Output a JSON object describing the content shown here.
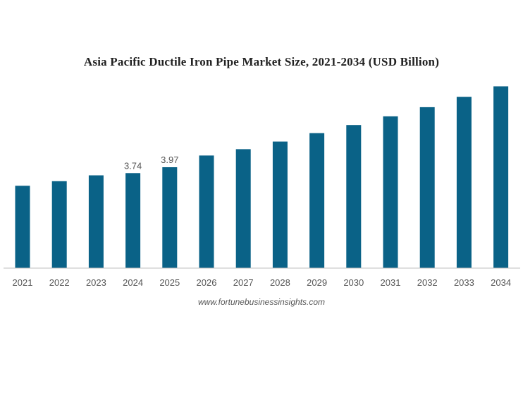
{
  "chart_data": {
    "type": "bar",
    "title": "Asia Pacific Ductile Iron Pipe Market Size, 2021-2034 (USD Billion)",
    "xlabel": "",
    "ylabel": "",
    "categories": [
      "2021",
      "2022",
      "2023",
      "2024",
      "2025",
      "2026",
      "2027",
      "2028",
      "2029",
      "2030",
      "2031",
      "2032",
      "2033",
      "2034"
    ],
    "values": [
      3.24,
      3.42,
      3.65,
      3.74,
      3.97,
      4.43,
      4.68,
      4.98,
      5.31,
      5.63,
      5.97,
      6.33,
      6.74,
      7.15
    ],
    "data_labels": {
      "3": "3.74",
      "4": "3.97"
    },
    "ylim": [
      0,
      7.3
    ],
    "grid": false,
    "legend": "none",
    "bar_color": "#0a6287",
    "axis_color": "#bfbfbf"
  },
  "source": "www.fortunebusinessinsights.com"
}
